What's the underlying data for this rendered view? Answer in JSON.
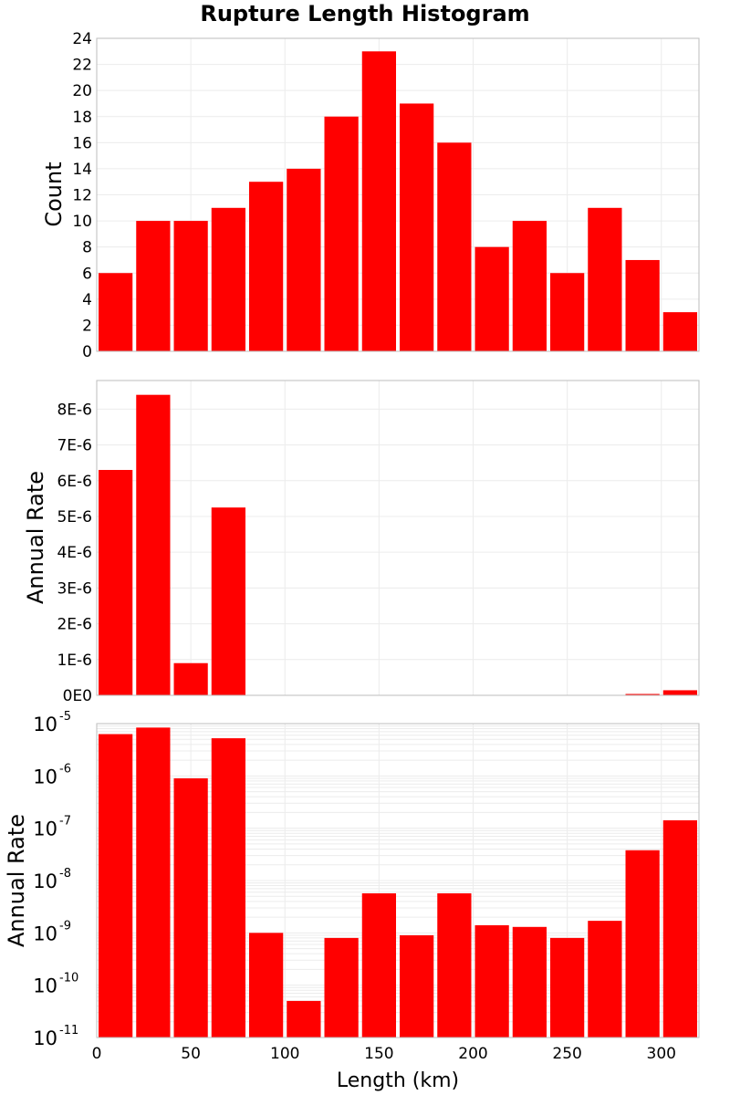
{
  "title": "Rupture Length Histogram",
  "chart_data": [
    {
      "type": "bar",
      "panel": "top",
      "title": "Rupture Length Histogram",
      "ylabel": "Count",
      "xlabel": "",
      "xlim": [
        0,
        320
      ],
      "ylim": [
        0,
        24
      ],
      "yticks": [
        0,
        2,
        4,
        6,
        8,
        10,
        12,
        14,
        16,
        18,
        20,
        22,
        24
      ],
      "ytick_labels": [
        "0",
        "2",
        "4",
        "6",
        "8",
        "10",
        "12",
        "14",
        "16",
        "18",
        "20",
        "22",
        "24"
      ],
      "bin_width": 20,
      "x": [
        10,
        30,
        50,
        70,
        90,
        110,
        130,
        150,
        170,
        190,
        210,
        230,
        250,
        270,
        290,
        310
      ],
      "values": [
        6,
        10,
        10,
        11,
        13,
        14,
        18,
        23,
        19,
        16,
        8,
        10,
        6,
        11,
        7,
        3
      ],
      "bar_color": "#ff0000",
      "grid": true
    },
    {
      "type": "bar",
      "panel": "middle",
      "ylabel": "Annual Rate",
      "xlabel": "",
      "xlim": [
        0,
        320
      ],
      "ylim": [
        0,
        8.8e-06
      ],
      "yticks": [
        0,
        1e-06,
        2e-06,
        3e-06,
        4e-06,
        5e-06,
        6e-06,
        7e-06,
        8e-06
      ],
      "ytick_labels": [
        "0E0",
        "1E-6",
        "2E-6",
        "3E-6",
        "4E-6",
        "5E-6",
        "6E-6",
        "7E-6",
        "8E-6"
      ],
      "bin_width": 20,
      "x": [
        10,
        30,
        50,
        70,
        90,
        110,
        130,
        150,
        170,
        190,
        210,
        230,
        250,
        270,
        290,
        310
      ],
      "values": [
        6.3e-06,
        8.4e-06,
        9e-07,
        5.25e-06,
        1e-09,
        5e-11,
        8e-10,
        5.7e-09,
        9e-10,
        5.7e-09,
        1.4e-09,
        1.3e-09,
        8e-10,
        1.7e-09,
        3.8e-08,
        1.42e-07
      ],
      "bar_color": "#ff0000",
      "grid": true
    },
    {
      "type": "bar",
      "panel": "bottom",
      "scale": "log",
      "ylabel": "Annual Rate",
      "xlabel": "Length (km)",
      "xlim": [
        0,
        320
      ],
      "ylim": [
        1e-11,
        1e-05
      ],
      "yticks_base": [
        "10",
        "10",
        "10",
        "10",
        "10",
        "10",
        "10"
      ],
      "yticks_exp": [
        "-11",
        "-10",
        "-9",
        "-8",
        "-7",
        "-6",
        "-5"
      ],
      "xticks": [
        0,
        50,
        100,
        150,
        200,
        250,
        300
      ],
      "xtick_labels": [
        "0",
        "50",
        "100",
        "150",
        "200",
        "250",
        "300"
      ],
      "bin_width": 20,
      "x": [
        10,
        30,
        50,
        70,
        90,
        110,
        130,
        150,
        170,
        190,
        210,
        230,
        250,
        270,
        290,
        310
      ],
      "values": [
        6.3e-06,
        8.4e-06,
        9e-07,
        5.25e-06,
        1e-09,
        5e-11,
        8e-10,
        5.7e-09,
        9e-10,
        5.7e-09,
        1.4e-09,
        1.3e-09,
        8e-10,
        1.7e-09,
        3.8e-08,
        1.42e-07
      ],
      "bar_color": "#ff0000",
      "grid": true
    }
  ]
}
